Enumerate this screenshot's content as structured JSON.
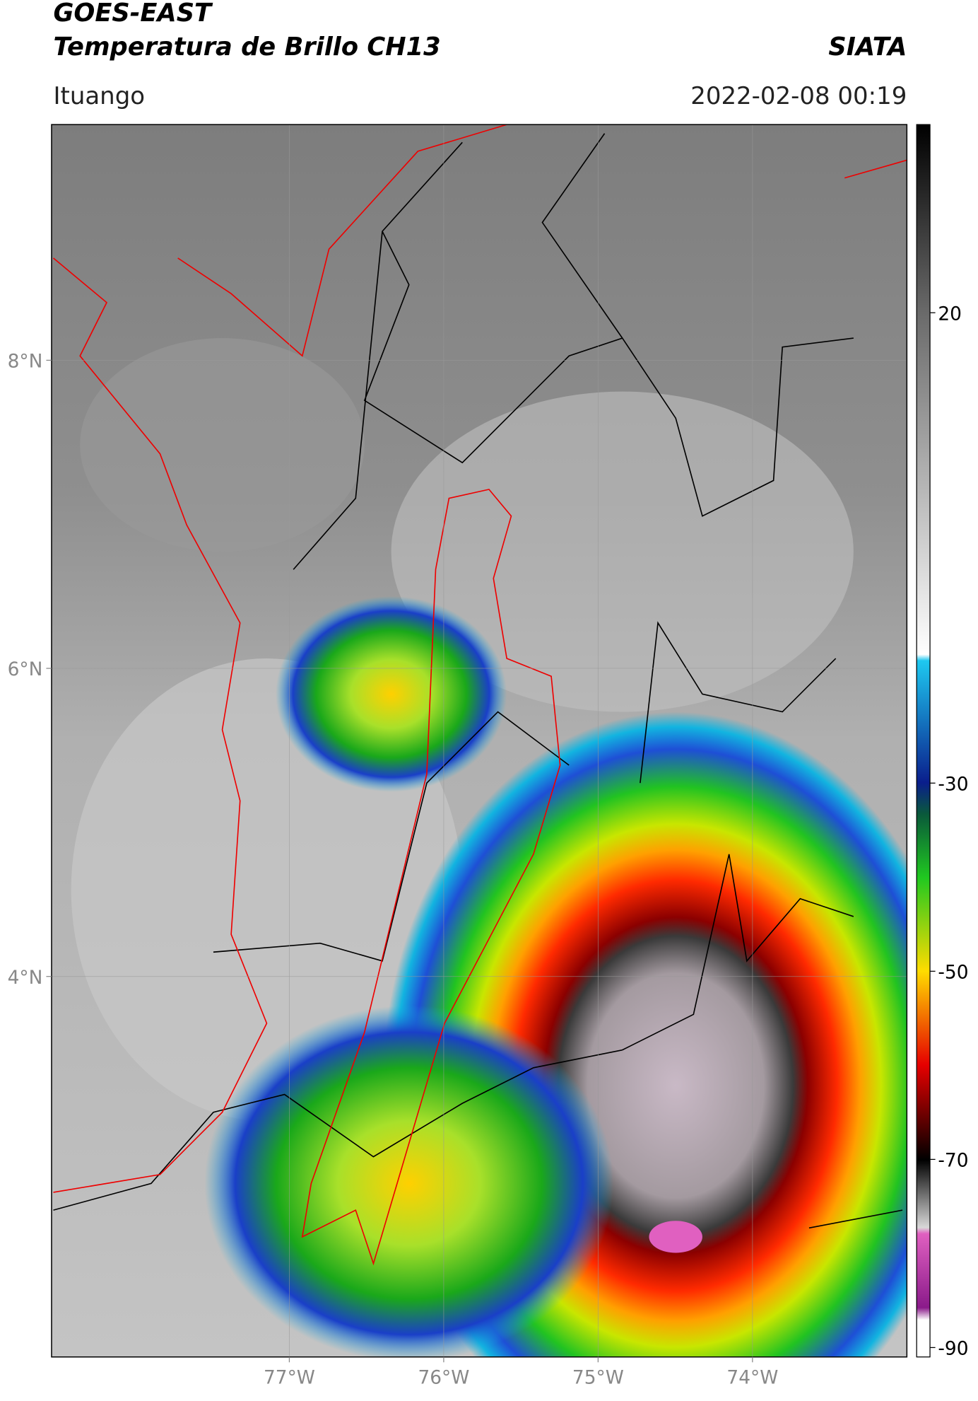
{
  "header": {
    "title_line1": "GOES-EAST",
    "title_line2": "Temperatura de Brillo CH13",
    "brand": "SIATA",
    "location": "Ituango",
    "datetime": "2022-02-08 00:19"
  },
  "map": {
    "xlim": [
      -78.54,
      -73.0
    ],
    "ylim": [
      1.53,
      9.53
    ],
    "xticks": [
      {
        "value": -77,
        "label": "77°W"
      },
      {
        "value": -76,
        "label": "76°W"
      },
      {
        "value": -75,
        "label": "75°W"
      },
      {
        "value": -74,
        "label": "74°W"
      }
    ],
    "yticks": [
      {
        "value": 8,
        "label": "8°N"
      },
      {
        "value": 6,
        "label": "6°N"
      },
      {
        "value": 4,
        "label": "4°N"
      }
    ]
  },
  "colorbar": {
    "lim": [
      -91,
      40
    ],
    "ticks": [
      20,
      -30,
      -50,
      -70,
      -90
    ]
  }
}
